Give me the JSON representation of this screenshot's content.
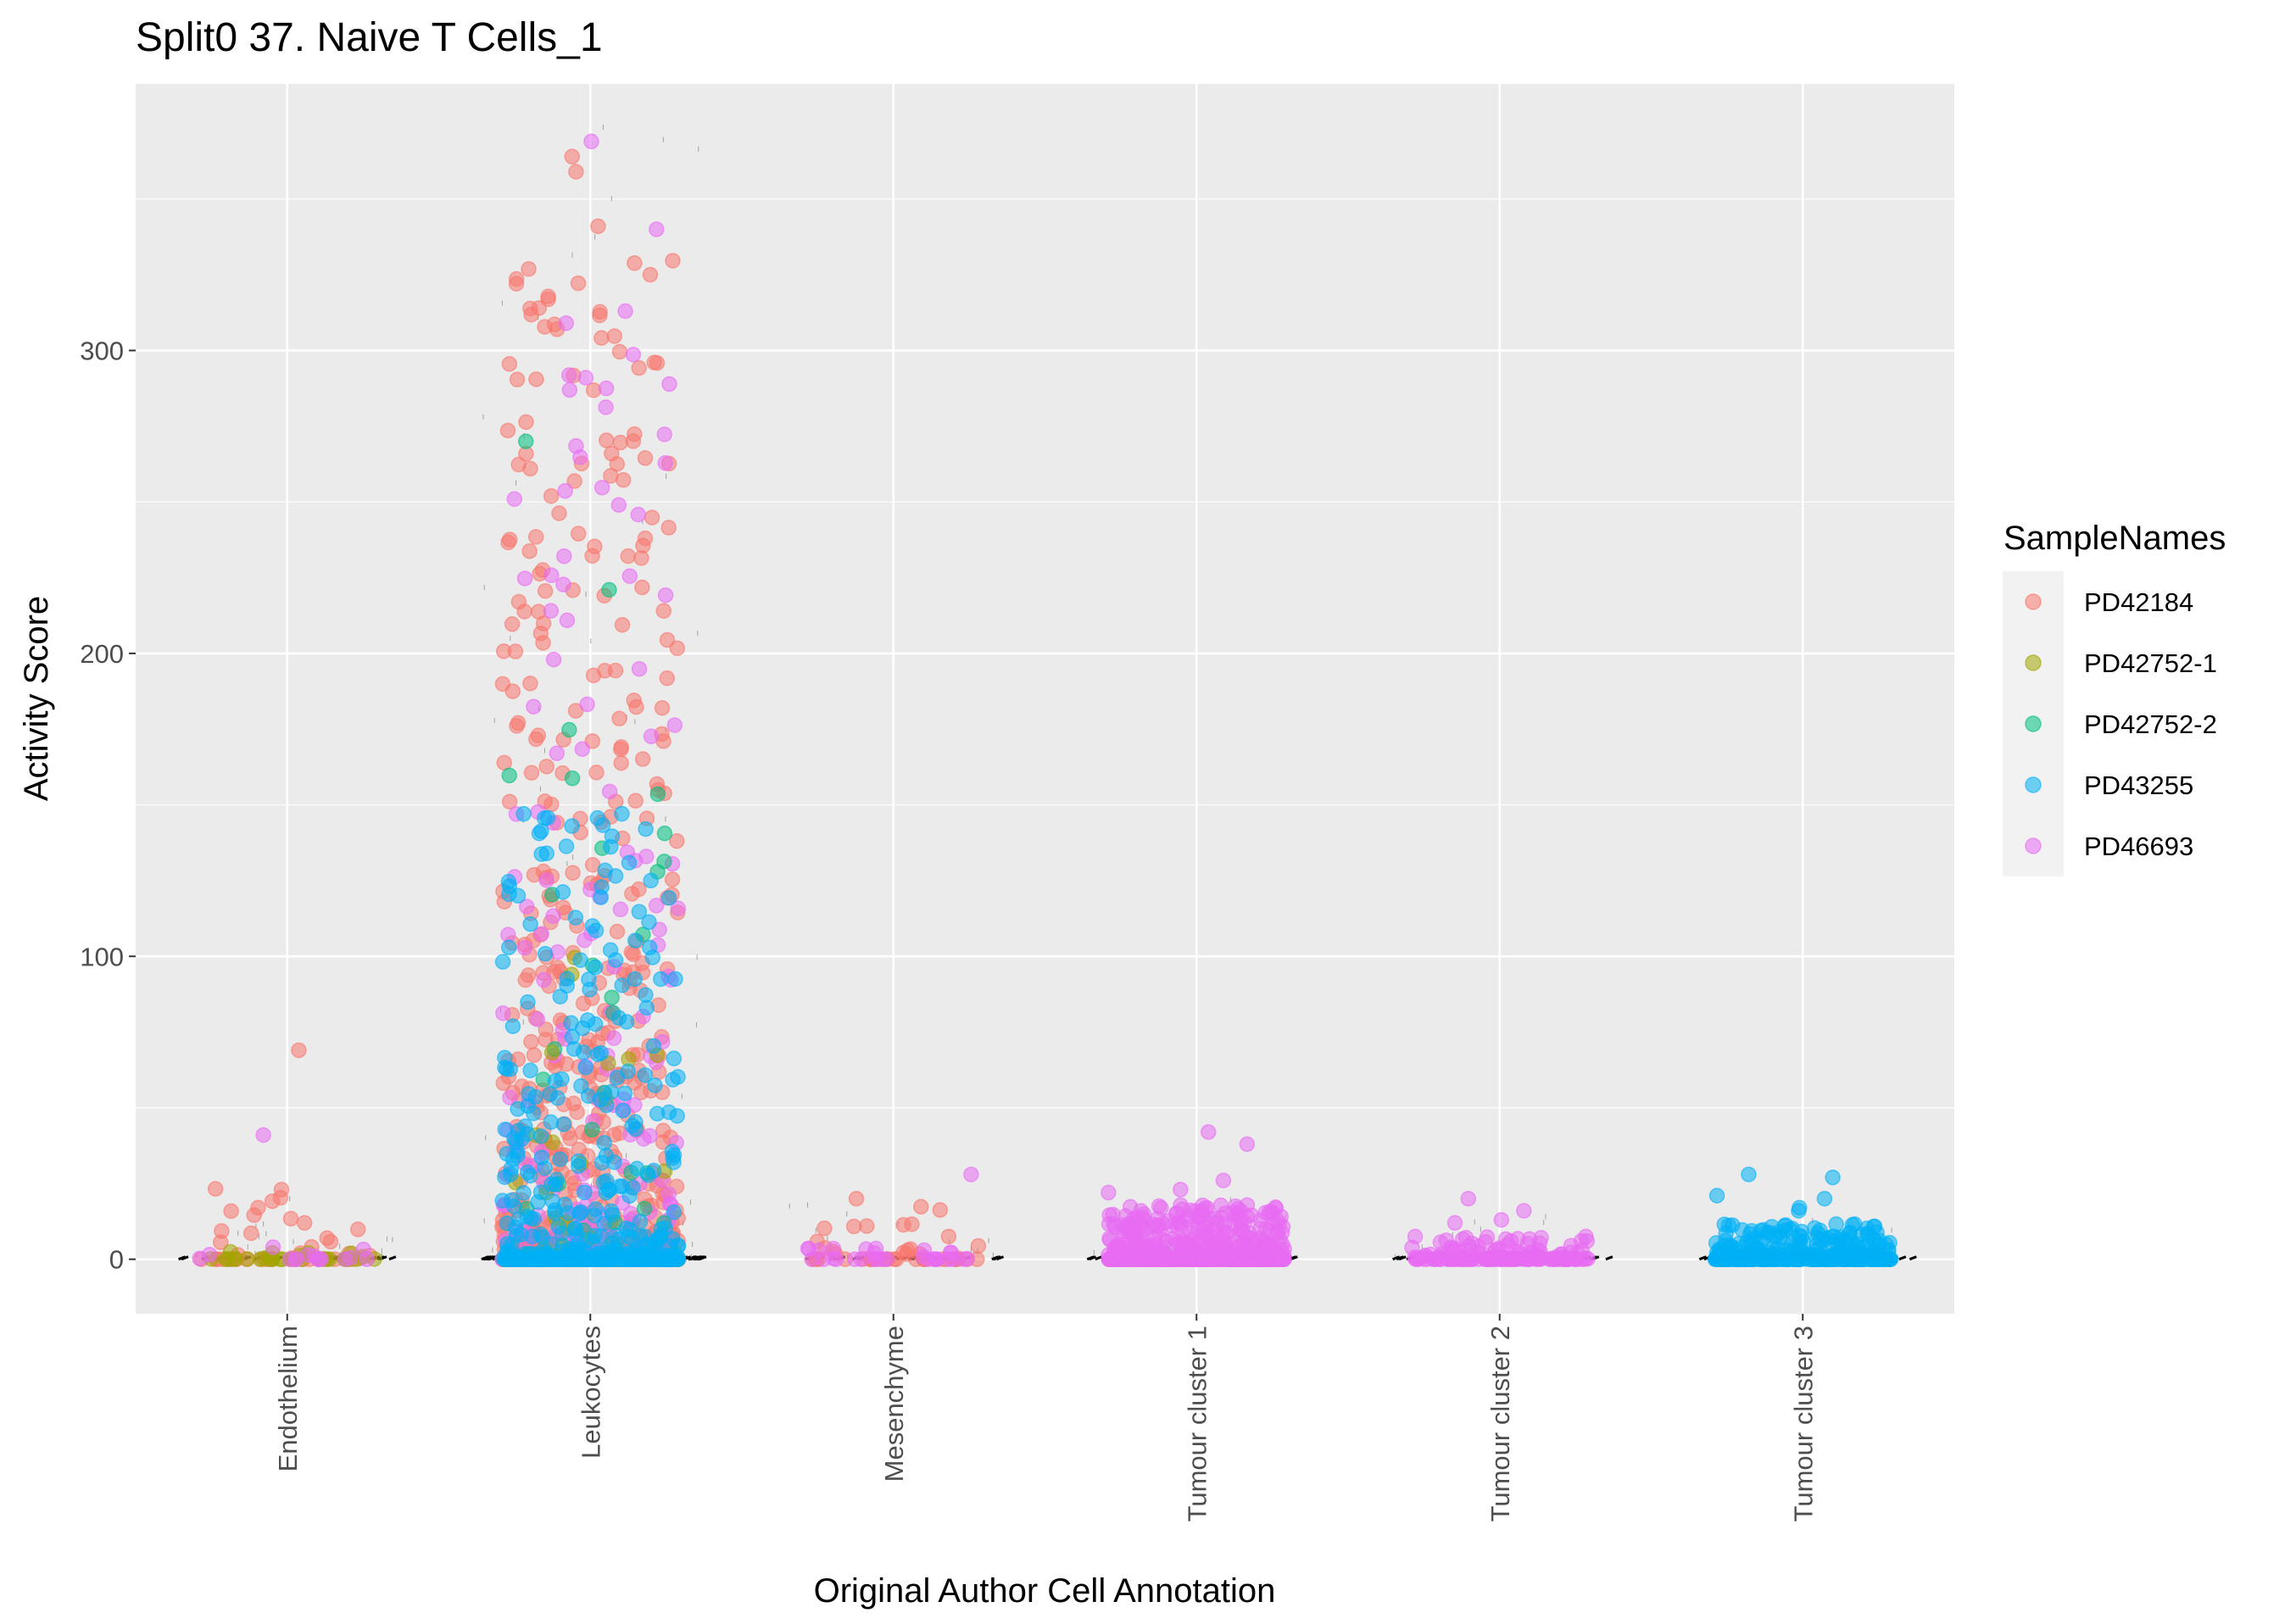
{
  "chart_data": {
    "type": "scatter",
    "subtype": "jitter",
    "title": "Split0 37. Naive T Cells_1",
    "xlabel": "Original Author Cell Annotation",
    "ylabel": "Activity Score",
    "categories": [
      "Endothelium",
      "Leukocytes",
      "Mesenchyme",
      "Tumour cluster 1",
      "Tumour cluster 2",
      "Tumour cluster 3"
    ],
    "ylim": [
      -18,
      388
    ],
    "yticks": [
      0,
      100,
      200,
      300
    ],
    "grid": true,
    "legend": {
      "title": "SampleNames",
      "position": "right",
      "entries": [
        "PD42184",
        "PD42752-1",
        "PD42752-2",
        "PD43255",
        "PD46693"
      ]
    },
    "series": [
      {
        "name": "PD42184",
        "color": "#F8766D"
      },
      {
        "name": "PD42752-1",
        "color": "#A3A500"
      },
      {
        "name": "PD42752-2",
        "color": "#00BF7D"
      },
      {
        "name": "PD43255",
        "color": "#00B0F6"
      },
      {
        "name": "PD46693",
        "color": "#E76BF3"
      }
    ],
    "groups": [
      {
        "category": "Endothelium",
        "points": [
          {
            "sample": "PD42184",
            "n": 40,
            "max": 24,
            "outliers": [
              69,
              23,
              17,
              12
            ]
          },
          {
            "sample": "PD42752-1",
            "n": 30,
            "max": 4,
            "outliers": []
          },
          {
            "sample": "PD46693",
            "n": 15,
            "max": 6,
            "outliers": [
              41
            ]
          }
        ]
      },
      {
        "category": "Leukocytes",
        "points": [
          {
            "sample": "PD42184",
            "n": 900,
            "max": 330,
            "outliers": [
              364,
              359,
              341,
              325,
              314,
              307
            ]
          },
          {
            "sample": "PD46693",
            "n": 260,
            "max": 300,
            "outliers": [
              369,
              340,
              313,
              309,
              291
            ]
          },
          {
            "sample": "PD42752-2",
            "n": 60,
            "max": 175,
            "outliers": [
              270,
              221
            ]
          },
          {
            "sample": "PD42752-1",
            "n": 40,
            "max": 120,
            "outliers": [
              94
            ]
          },
          {
            "sample": "PD43255",
            "n": 500,
            "max": 148,
            "outliers": [
              147,
              125,
              120
            ]
          }
        ]
      },
      {
        "category": "Mesenchyme",
        "points": [
          {
            "sample": "PD42184",
            "n": 45,
            "max": 18,
            "outliers": [
              20
            ]
          },
          {
            "sample": "PD46693",
            "n": 30,
            "max": 6,
            "outliers": [
              28
            ]
          }
        ]
      },
      {
        "category": "Tumour cluster 1",
        "points": [
          {
            "sample": "PD42752-2",
            "n": 10,
            "max": 10,
            "outliers": []
          },
          {
            "sample": "PD46693",
            "n": 700,
            "max": 18,
            "outliers": [
              42,
              38,
              26,
              23,
              22
            ]
          }
        ]
      },
      {
        "category": "Tumour cluster 2",
        "points": [
          {
            "sample": "PD46693",
            "n": 160,
            "max": 8,
            "outliers": [
              20,
              16,
              13,
              12
            ]
          }
        ]
      },
      {
        "category": "Tumour cluster 3",
        "points": [
          {
            "sample": "PD43255",
            "n": 450,
            "max": 12,
            "outliers": [
              28,
              27,
              21,
              20,
              17,
              16
            ]
          }
        ]
      }
    ]
  }
}
